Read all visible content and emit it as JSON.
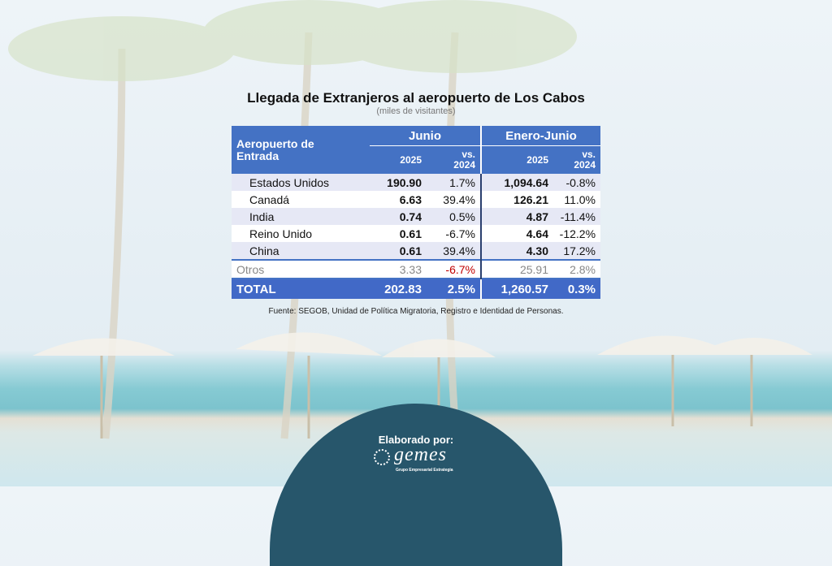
{
  "title": "Llegada de Extranjeros al aeropuerto de Los Cabos",
  "subtitle": "(miles de visitantes)",
  "table": {
    "header": {
      "label": "Aeropuerto de Entrada",
      "groups": [
        "Junio",
        "Enero-Junio"
      ],
      "columns": [
        "2025",
        "vs. 2024",
        "2025",
        "vs. 2024"
      ]
    },
    "rows": [
      [
        "Estados Unidos",
        "190.90",
        "1.7%",
        "1,094.64",
        "-0.8%"
      ],
      [
        "Canadá",
        "6.63",
        "39.4%",
        "126.21",
        "11.0%"
      ],
      [
        "India",
        "0.74",
        "0.5%",
        "4.87",
        "-11.4%"
      ],
      [
        "Reino Unido",
        "0.61",
        "-6.7%",
        "4.64",
        "-12.2%"
      ],
      [
        "China",
        "0.61",
        "39.4%",
        "4.30",
        "17.2%"
      ]
    ],
    "others": [
      "Otros",
      "3.33",
      "-6.7%",
      "25.91",
      "2.8%"
    ],
    "total": [
      "TOTAL",
      "202.83",
      "2.5%",
      "1,260.57",
      "0.3%"
    ]
  },
  "source": "Fuente: SEGOB, Unidad de Política Migratoria, Registro e Identidad de Personas.",
  "footer": {
    "label": "Elaborado por:",
    "logo": "gemes",
    "tagline": "Grupo Empresarial Estrategia"
  }
}
